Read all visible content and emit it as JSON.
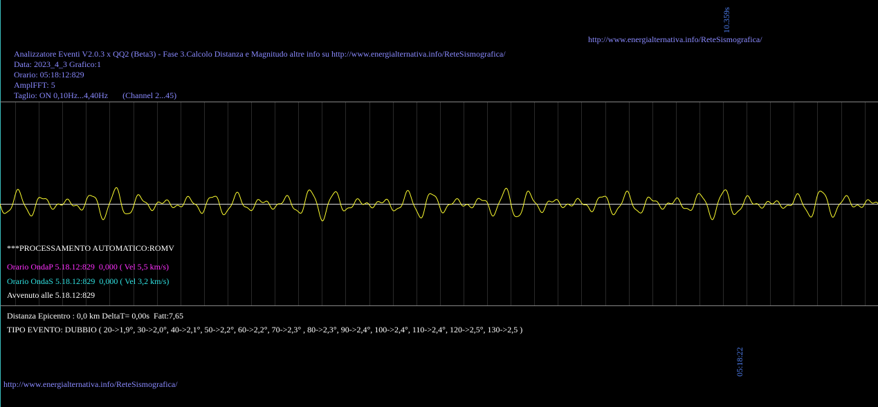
{
  "top": {
    "duration": "10.359s",
    "link": "http://www.energialternativa.info/ReteSismografica/"
  },
  "info": {
    "lines": [
      "Analizzatore Eventi V2.0.3 x QQ2 (Beta3) - Fase 3.Calcolo Distanza e Magnitudo altre info su http://www.energialternativa.info/ReteSismografica/",
      "Data: 2023_4_3 Grafico:1",
      "Orario: 05:18:12:829",
      "AmplFFT: 5",
      "Taglio: ON 0,10Hz...4,40Hz       (Channel 2...45)"
    ]
  },
  "processing": {
    "title": "***PROCESSAMENTO AUTOMATICO:ROMV",
    "wave_p": "Orario OndaP 5.18.12:829  0,000 ( Vel 5,5 km/s)",
    "wave_s": "Orario OndaS 5.18.12:829  0,000 ( Vel 3,2 km/s)",
    "occurred": "Avvenuto alle 5.18.12:829"
  },
  "result": {
    "distance": "Distanza Epicentro : 0,0 km DeltaT= 0,00s  Fatt:7,65",
    "event_type": "TIPO EVENTO: DUBBIO ( 20->1,9°, 30->2,0°, 40->2,1°, 50->2,2°, 60->2,2°, 70->2,3° , 80->2,3°, 90->2,4°, 100->2,4°, 110->2,4°, 120->2,5°, 130->2,5 )"
  },
  "time_marker": "05:18:22",
  "footer": {
    "link": "http://www.energialternativa.info/ReteSismografica/"
  }
}
